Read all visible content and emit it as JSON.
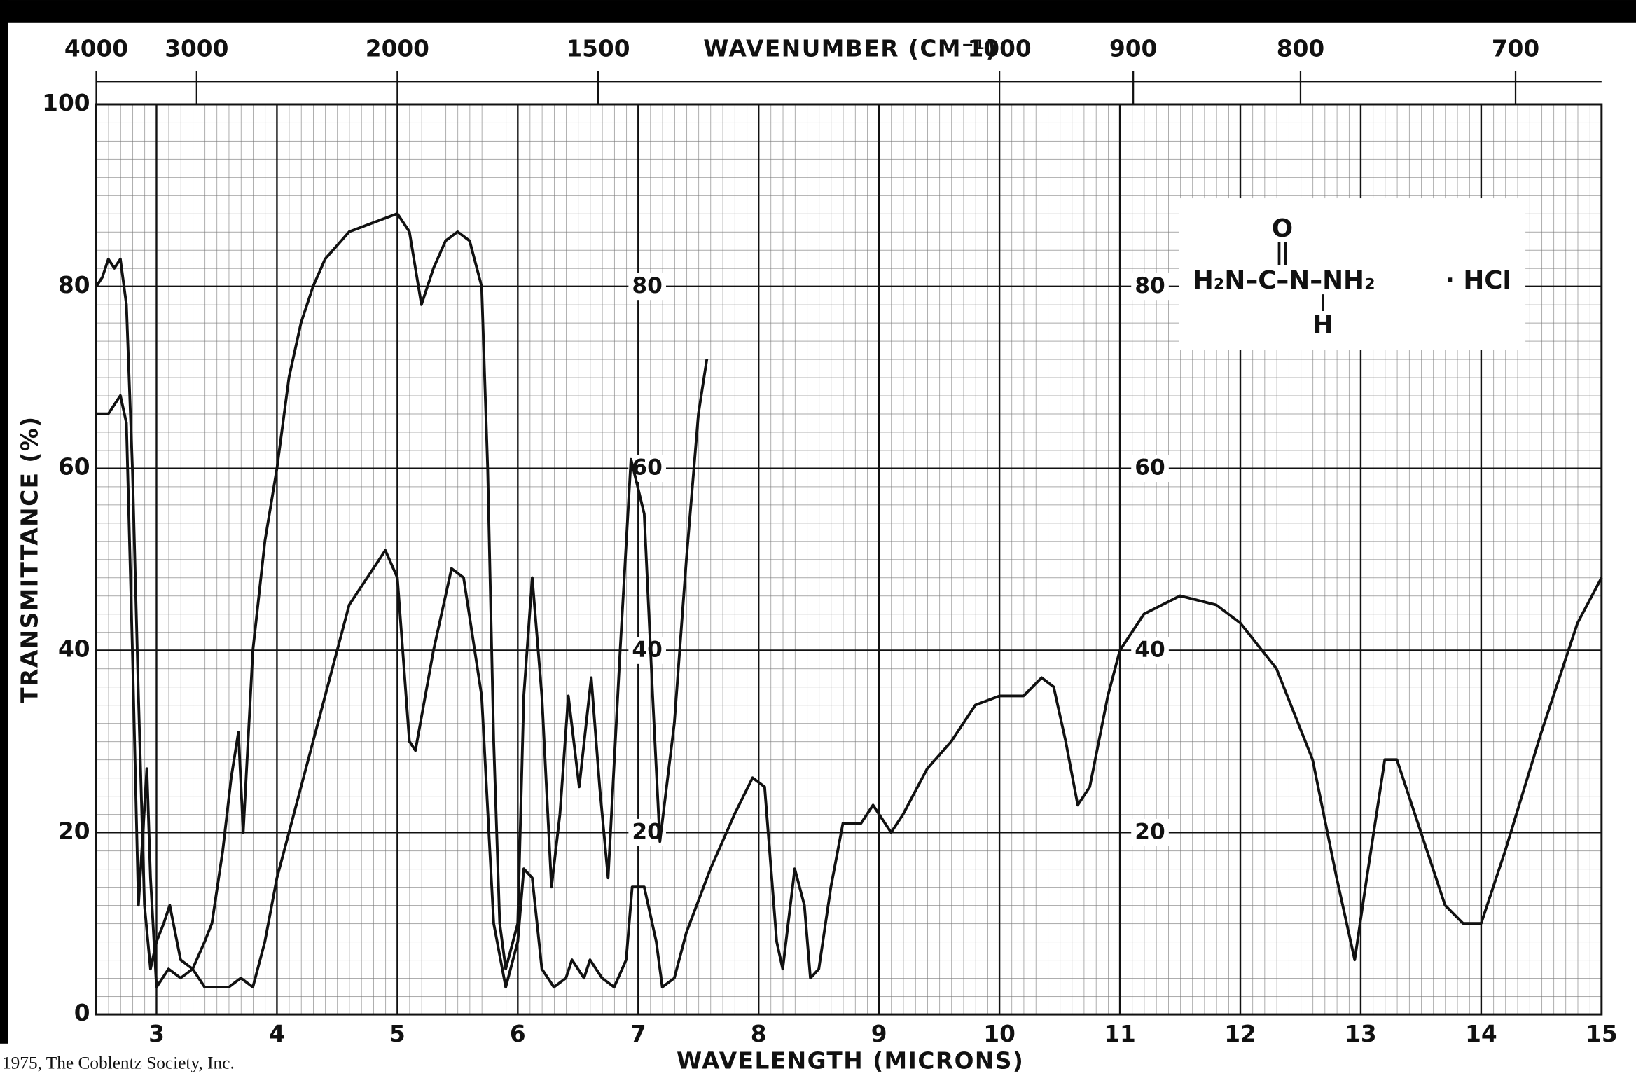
{
  "chart_data": {
    "type": "line",
    "x_label": "WAVELENGTH (MICRONS)",
    "x2_label": "WAVENUMBER (CM⁻¹)",
    "y_label": "TRANSMITTANCE (%)",
    "copyright": "1975, The Coblentz Society, Inc.",
    "structure": {
      "top": "O",
      "formula": "H₂N–C–N–NH₂",
      "salt": "· HCl",
      "bottom": "H"
    },
    "xlim": [
      2.5,
      15
    ],
    "xticks": [
      3,
      4,
      5,
      6,
      7,
      8,
      9,
      10,
      11,
      12,
      13,
      14,
      15
    ],
    "x2ticks": [
      4000,
      3000,
      2000,
      1500,
      1000,
      900,
      800,
      700
    ],
    "ylim": [
      0,
      100
    ],
    "yticks": [
      0,
      20,
      40,
      60,
      80,
      100
    ],
    "inner_yticks": [
      80,
      60,
      40,
      20
    ],
    "grid": true,
    "series": [
      {
        "color": "#111111",
        "x": [
          2.5,
          2.55,
          2.6,
          2.65,
          2.7,
          2.75,
          2.8,
          2.85,
          2.9,
          2.95,
          3.0,
          3.06,
          3.11,
          3.2,
          3.3,
          3.4,
          3.46,
          3.55,
          3.62,
          3.68,
          3.72,
          3.8,
          3.9,
          4.0,
          4.1,
          4.2,
          4.3,
          4.4,
          4.6,
          4.8,
          5.0,
          5.1,
          5.2,
          5.3,
          5.4,
          5.5,
          5.6,
          5.7,
          5.75,
          5.8,
          5.85,
          5.9,
          6.0,
          6.05,
          6.12,
          6.2,
          6.28,
          6.35,
          6.42,
          6.51,
          6.61,
          6.68,
          6.75,
          6.85,
          6.94,
          7.05,
          7.12,
          7.18,
          7.3,
          7.4,
          7.5,
          7.57
        ],
        "values": [
          80,
          81,
          83,
          82,
          83,
          78,
          60,
          35,
          12,
          5,
          8,
          10,
          12,
          6,
          5,
          8,
          10,
          18,
          26,
          31,
          20,
          40,
          52,
          60,
          70,
          76,
          80,
          83,
          86,
          87,
          88,
          86,
          78,
          82,
          85,
          86,
          85,
          80,
          60,
          30,
          10,
          5,
          10,
          35,
          48,
          35,
          14,
          22,
          35,
          25,
          37,
          25,
          15,
          40,
          61,
          55,
          35,
          19,
          32,
          50,
          66,
          72
        ]
      },
      {
        "color": "#111111",
        "x": [
          2.5,
          2.6,
          2.7,
          2.75,
          2.8,
          2.85,
          2.92,
          2.95,
          3.0,
          3.1,
          3.2,
          3.3,
          3.4,
          3.6,
          3.7,
          3.8,
          3.9,
          4.0,
          4.2,
          4.4,
          4.6,
          4.8,
          4.9,
          5.0,
          5.1,
          5.15,
          5.3,
          5.45,
          5.55,
          5.7,
          5.8,
          5.9,
          6.0,
          6.05,
          6.12,
          6.2,
          6.3,
          6.4,
          6.45,
          6.55,
          6.6,
          6.7,
          6.8,
          6.9,
          6.95,
          7.05,
          7.15,
          7.2,
          7.3,
          7.4,
          7.6,
          7.8,
          7.95,
          8.05,
          8.15,
          8.2,
          8.3,
          8.38,
          8.43,
          8.5,
          8.6,
          8.7,
          8.85,
          8.95,
          9.1,
          9.2,
          9.4,
          9.6,
          9.8,
          10.0,
          10.2,
          10.35,
          10.45,
          10.55,
          10.65,
          10.75,
          10.9,
          11.0,
          11.2,
          11.5,
          11.8,
          12.0,
          12.3,
          12.6,
          12.8,
          12.95,
          13.05,
          13.2,
          13.3,
          13.5,
          13.7,
          13.85,
          14.0,
          14.2,
          14.5,
          14.8,
          15.0
        ],
        "values": [
          66,
          66,
          68,
          65,
          40,
          12,
          27,
          15,
          3,
          5,
          4,
          5,
          3,
          3,
          4,
          3,
          8,
          15,
          25,
          35,
          45,
          49,
          51,
          48,
          30,
          29,
          40,
          49,
          48,
          35,
          10,
          3,
          8,
          16,
          15,
          5,
          3,
          4,
          6,
          4,
          6,
          4,
          3,
          6,
          14,
          14,
          8,
          3,
          4,
          9,
          16,
          22,
          26,
          25,
          8,
          5,
          16,
          12,
          4,
          5,
          14,
          21,
          21,
          23,
          20,
          22,
          27,
          30,
          34,
          35,
          35,
          37,
          36,
          30,
          23,
          25,
          35,
          40,
          44,
          46,
          45,
          43,
          38,
          28,
          15,
          6,
          15,
          28,
          28,
          20,
          12,
          10,
          10,
          18,
          31,
          43,
          48
        ]
      }
    ]
  }
}
